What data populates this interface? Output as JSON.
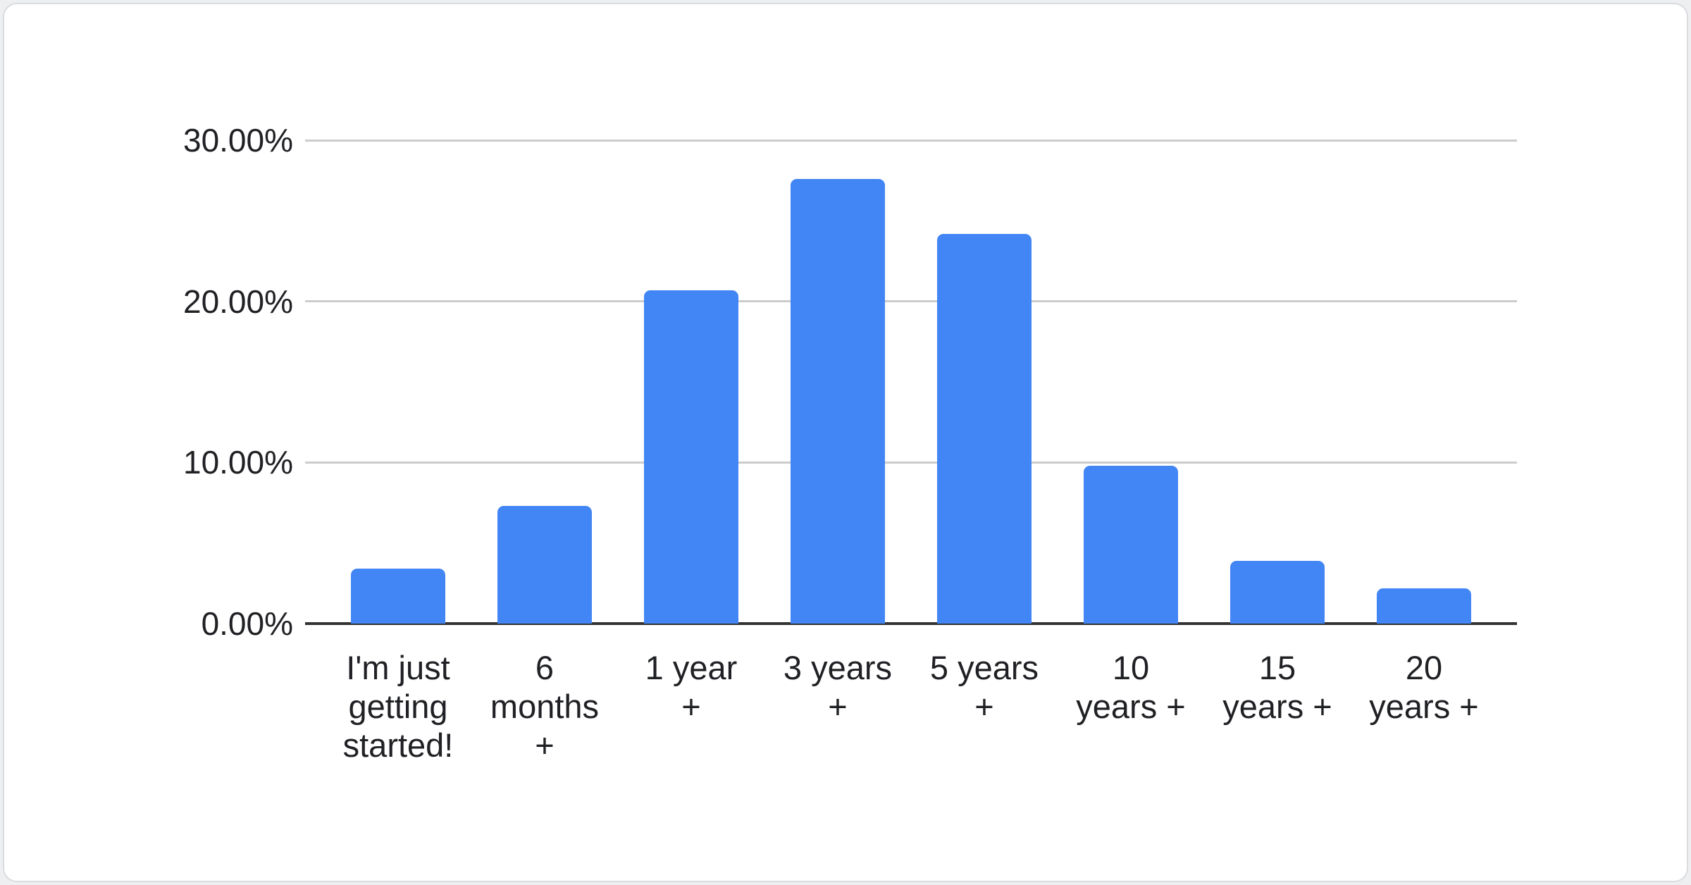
{
  "page": {
    "background": "#edeff1"
  },
  "card": {
    "background": "#ffffff",
    "border_color": "#dadce0"
  },
  "chart_data": {
    "type": "bar",
    "title": "",
    "categories": [
      "I'm just getting started!",
      "6 months +",
      "1 year +",
      "3 years +",
      "5 years +",
      "10 years +",
      "15 years +",
      "20 years +"
    ],
    "values": [
      3.4,
      7.3,
      20.7,
      27.6,
      24.2,
      9.8,
      3.9,
      2.2
    ],
    "value_unit": "percent",
    "ylim": [
      0,
      30
    ],
    "yticks": [
      {
        "value": 30,
        "label": "30.00%"
      },
      {
        "value": 20,
        "label": "20.00%"
      },
      {
        "value": 10,
        "label": "10.00%"
      },
      {
        "value": 0,
        "label": "0.00%"
      }
    ],
    "xtick_display": [
      "I'm just\ngetting\nstarted!",
      "6\nmonths\n+",
      "1 year\n+",
      "3 years\n+",
      "5 years\n+",
      "10\nyears +",
      "15\nyears +",
      "20\nyears +"
    ],
    "grid": true,
    "legend": "none",
    "bar_color": "#4285f4",
    "gridline_color": "#cccccc",
    "baseline_color": "#333333",
    "axis_text_color": "#202124"
  }
}
